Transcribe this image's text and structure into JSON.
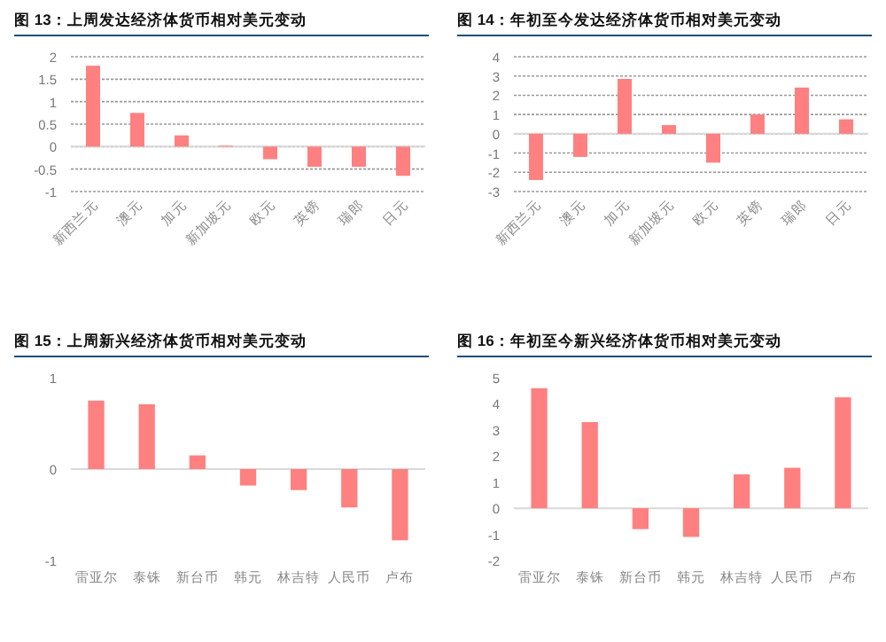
{
  "chart_data": [
    {
      "type": "bar",
      "title": "图 13：上周发达经济体货币相对美元变动",
      "categories": [
        "新西兰元",
        "澳元",
        "加元",
        "新加坡元",
        "欧元",
        "英镑",
        "瑞郎",
        "日元"
      ],
      "values": [
        1.8,
        0.75,
        0.25,
        0.02,
        -0.28,
        -0.45,
        -0.45,
        -0.65
      ],
      "color": "#ff8080",
      "ylim": [
        -1,
        2
      ],
      "yticks": [
        -1,
        -0.5,
        0,
        0.5,
        1,
        1.5,
        2
      ],
      "grid": "y"
    },
    {
      "type": "bar",
      "title": "图 14：年初至今发达经济体货币相对美元变动",
      "categories": [
        "新西兰元",
        "澳元",
        "加元",
        "新加坡元",
        "欧元",
        "英镑",
        "瑞郎",
        "日元"
      ],
      "values": [
        -2.4,
        -1.2,
        2.85,
        0.45,
        -1.5,
        1.0,
        2.4,
        0.75
      ],
      "color": "#ff8080",
      "ylim": [
        -3,
        4
      ],
      "yticks": [
        -3,
        -2,
        -1,
        0,
        1,
        2,
        3,
        4
      ],
      "grid": "y"
    },
    {
      "type": "bar",
      "title": "图 15：上周新兴经济体货币相对美元变动",
      "categories": [
        "雷亚尔",
        "泰铢",
        "新台币",
        "韩元",
        "林吉特",
        "人民币",
        "卢布"
      ],
      "values": [
        0.75,
        0.71,
        0.15,
        -0.18,
        -0.23,
        -0.42,
        -0.78
      ],
      "color": "#ff8080",
      "ylim": [
        -1,
        1
      ],
      "yticks": [
        -1,
        0,
        1
      ]
    },
    {
      "type": "bar",
      "title": "图 16：年初至今新兴经济体货币相对美元变动",
      "categories": [
        "雷亚尔",
        "泰铢",
        "新台币",
        "韩元",
        "林吉特",
        "人民币",
        "卢布"
      ],
      "values": [
        4.6,
        3.3,
        -0.8,
        -1.1,
        1.3,
        1.55,
        4.25
      ],
      "color": "#ff8080",
      "ylim": [
        -2,
        5
      ],
      "yticks": [
        -2,
        -1,
        0,
        1,
        2,
        3,
        4,
        5
      ]
    }
  ]
}
